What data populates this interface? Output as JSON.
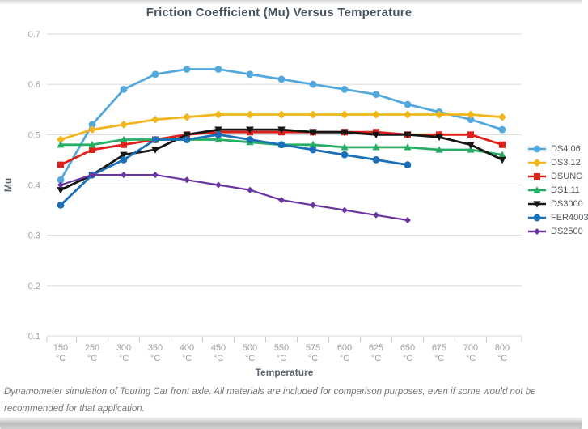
{
  "chart_data": {
    "type": "line",
    "title": "Friction Coefficient (Mu) Versus Temperature",
    "xlabel": "Temperature",
    "ylabel": "Mu",
    "x_unit": "°C",
    "categories": [
      "150",
      "250",
      "300",
      "350",
      "400",
      "450",
      "500",
      "550",
      "575",
      "600",
      "625",
      "650",
      "675",
      "700",
      "800"
    ],
    "ylim": [
      0.1,
      0.7
    ],
    "y_ticks": [
      0.7,
      0.6,
      0.5,
      0.4,
      0.3,
      0.2,
      0.1
    ],
    "grid": "horizontal",
    "legend_position": "right",
    "series": [
      {
        "name": "DS4.06",
        "color": "#54A8DC",
        "marker": "circle",
        "values": [
          0.41,
          0.52,
          0.59,
          0.62,
          0.63,
          0.63,
          0.62,
          0.61,
          0.6,
          0.59,
          0.58,
          0.56,
          0.545,
          0.53,
          0.51
        ]
      },
      {
        "name": "DS3.12",
        "color": "#F2B51D",
        "marker": "diamond",
        "values": [
          0.49,
          0.51,
          0.52,
          0.53,
          0.535,
          0.54,
          0.54,
          0.54,
          0.54,
          0.54,
          0.54,
          0.54,
          0.54,
          0.54,
          0.535
        ]
      },
      {
        "name": "DSUNO",
        "color": "#E0201B",
        "marker": "square",
        "values": [
          0.44,
          0.47,
          0.48,
          0.49,
          0.5,
          0.505,
          0.505,
          0.505,
          0.505,
          0.505,
          0.505,
          0.5,
          0.5,
          0.5,
          0.48
        ]
      },
      {
        "name": "DS1.11",
        "color": "#26AF64",
        "marker": "triangle-up",
        "values": [
          0.48,
          0.48,
          0.49,
          0.49,
          0.49,
          0.49,
          0.485,
          0.48,
          0.48,
          0.475,
          0.475,
          0.475,
          0.47,
          0.47,
          0.46
        ]
      },
      {
        "name": "DS3000",
        "color": "#161616",
        "marker": "triangle-down",
        "values": [
          0.39,
          0.42,
          0.46,
          0.47,
          0.5,
          0.51,
          0.51,
          0.51,
          0.505,
          0.505,
          0.5,
          0.5,
          0.495,
          0.48,
          0.45
        ]
      },
      {
        "name": "FER4003",
        "color": "#1C70B8",
        "marker": "circle",
        "values": [
          0.36,
          0.42,
          0.45,
          0.49,
          0.49,
          0.5,
          0.49,
          0.48,
          0.47,
          0.46,
          0.45,
          0.44
        ]
      },
      {
        "name": "DS2500",
        "color": "#6A35A0",
        "marker": "diamond-small",
        "values": [
          0.4,
          0.42,
          0.42,
          0.42,
          0.41,
          0.4,
          0.39,
          0.37,
          0.36,
          0.35,
          0.34,
          0.33
        ]
      }
    ]
  },
  "footer": {
    "caption": "Dynamometer simulation of Touring Car front axle. All materials are included for comparison purposes, even if some would not be recommended for that application."
  },
  "colors": {
    "title_text": "#47525d",
    "axis_tick_text": "#9aa0a5",
    "axis_title_text": "#5d6771",
    "gridline": "#d9d9d9",
    "legend_text": "#55595d",
    "caption_text": "#76777a"
  }
}
